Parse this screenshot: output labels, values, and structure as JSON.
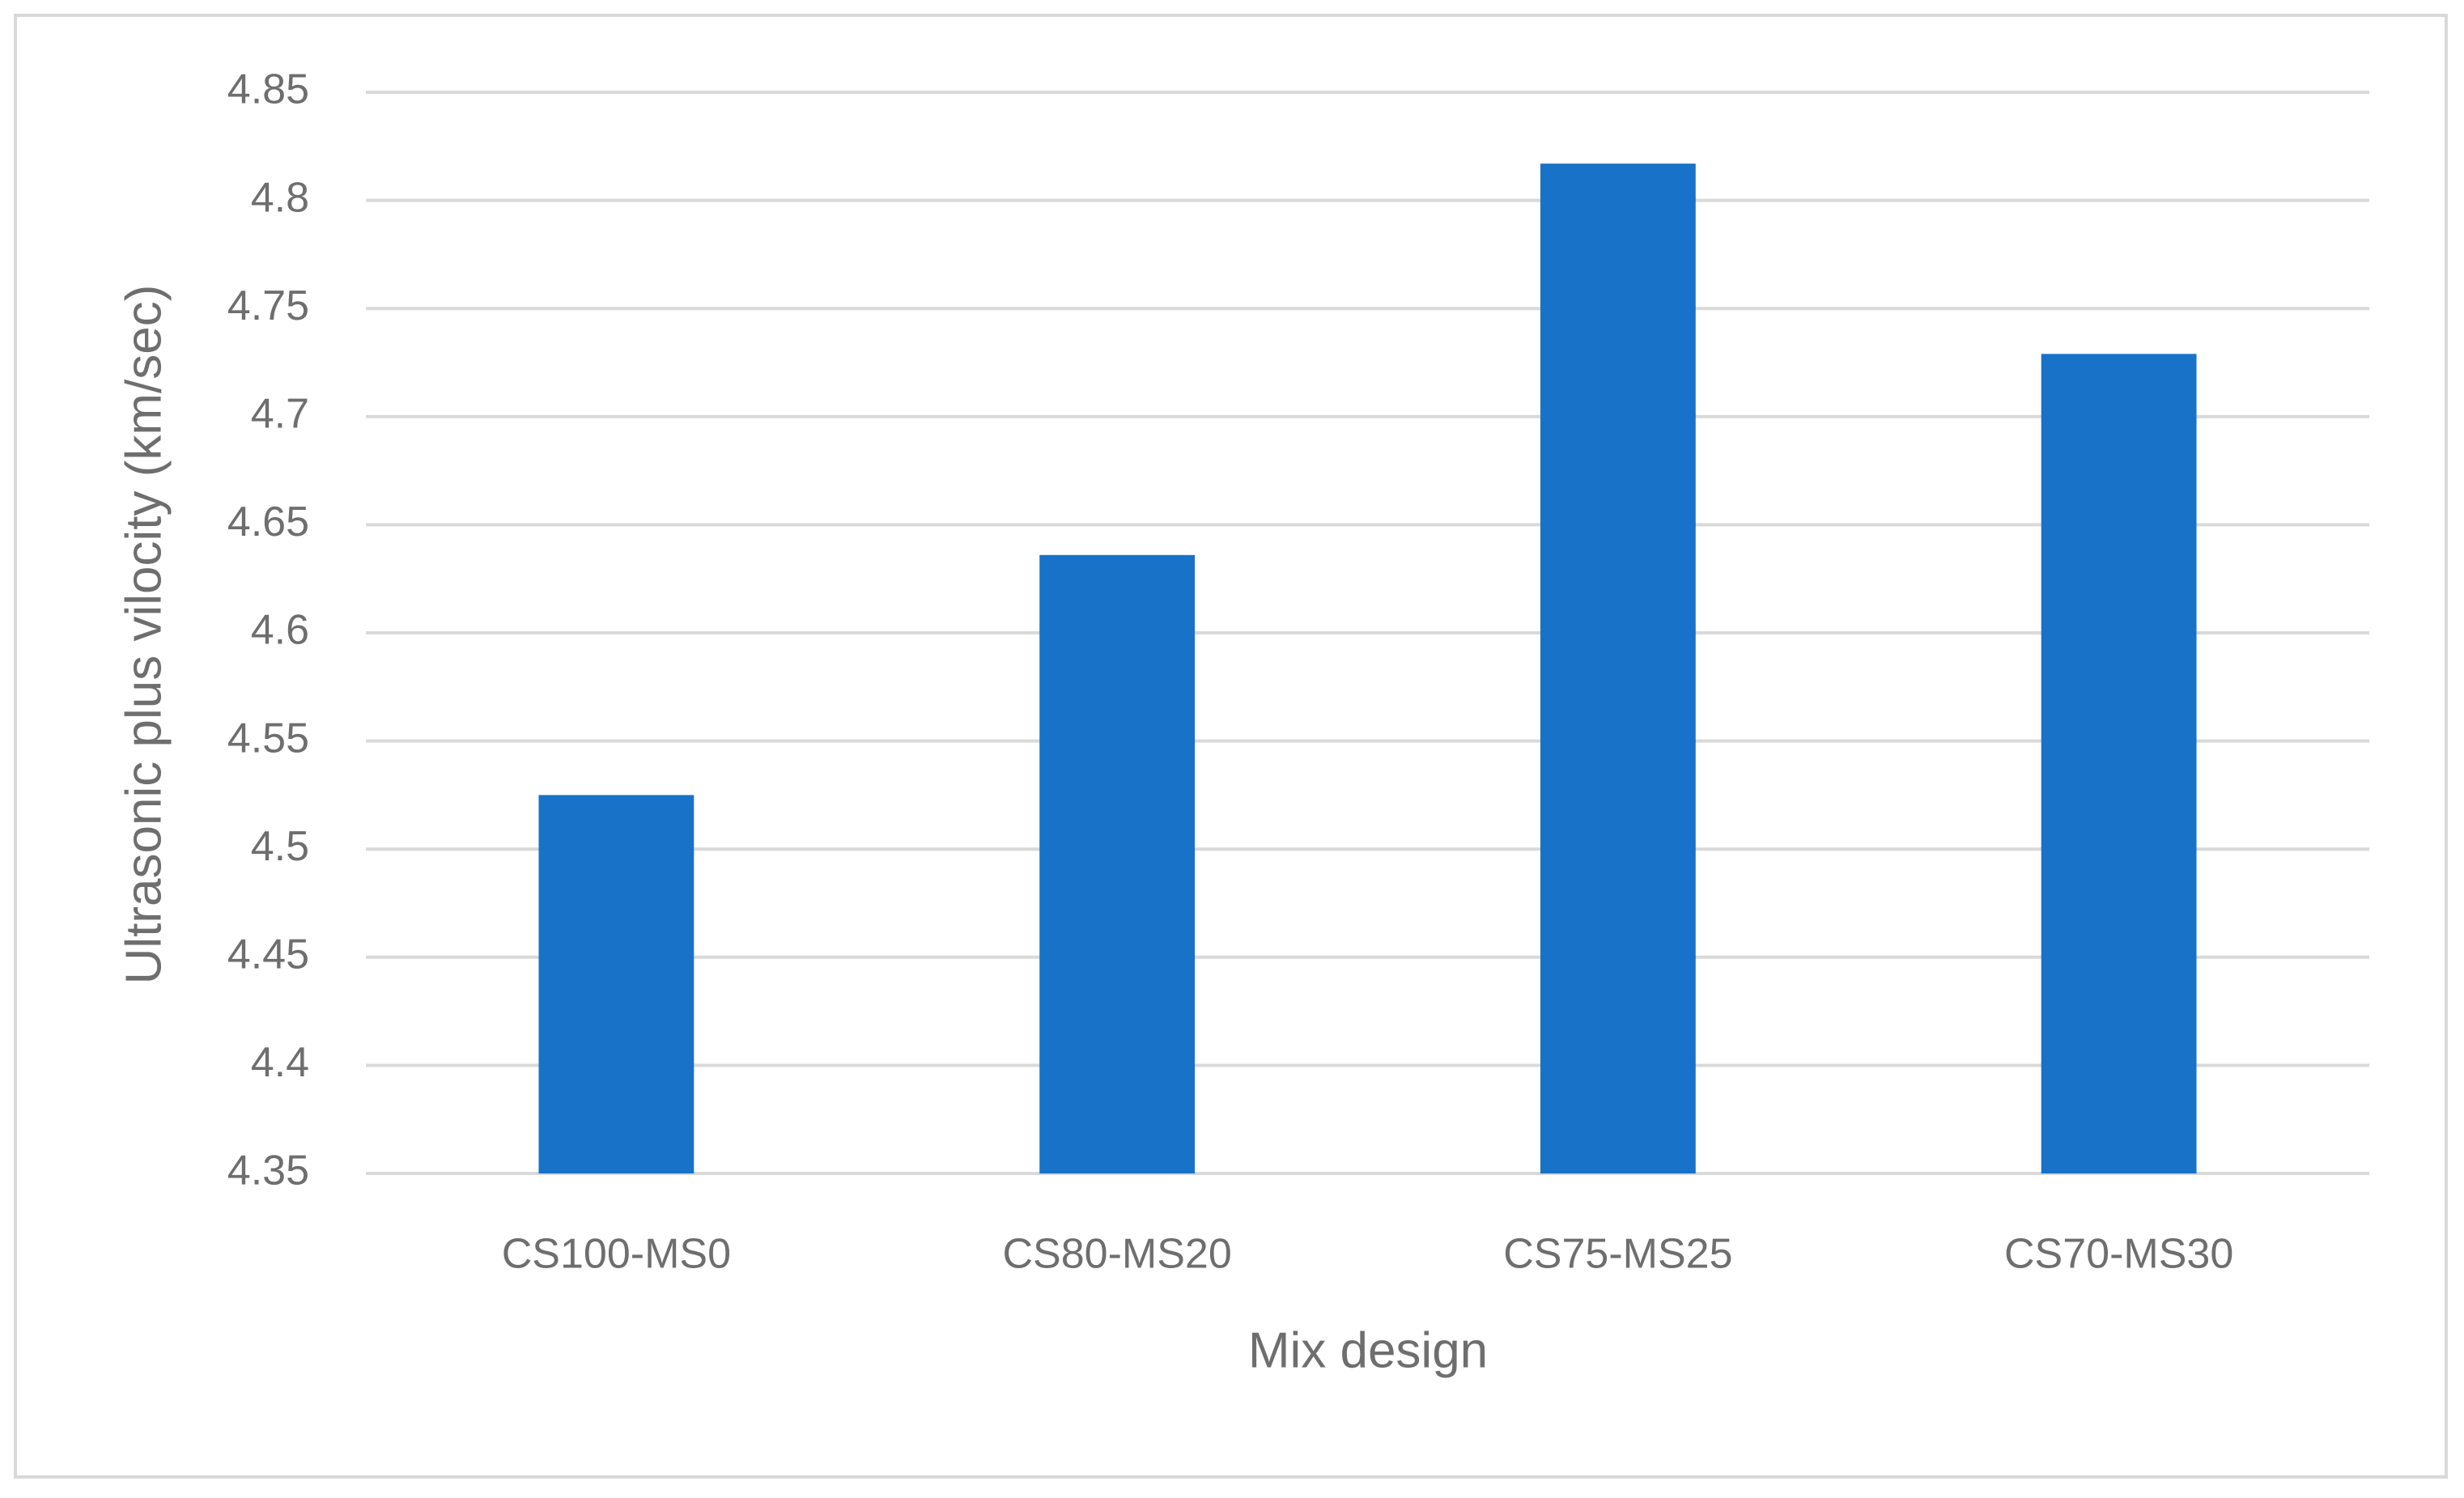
{
  "chart_data": {
    "type": "bar",
    "x_label": "Mix design",
    "y_label": "Ultrasonic plus vilocity (km/sec)",
    "categories": [
      "CS100-MS0",
      "CS80-MS20",
      "CS75-MS25",
      "CS70-MS30"
    ],
    "values": [
      4.525,
      4.636,
      4.817,
      4.729
    ],
    "color": "#1872c8",
    "ylim": [
      4.35,
      4.85
    ],
    "yticks": [
      4.35,
      4.4,
      4.45,
      4.5,
      4.55,
      4.6,
      4.65,
      4.7,
      4.75,
      4.8,
      4.85
    ],
    "grid": true
  }
}
